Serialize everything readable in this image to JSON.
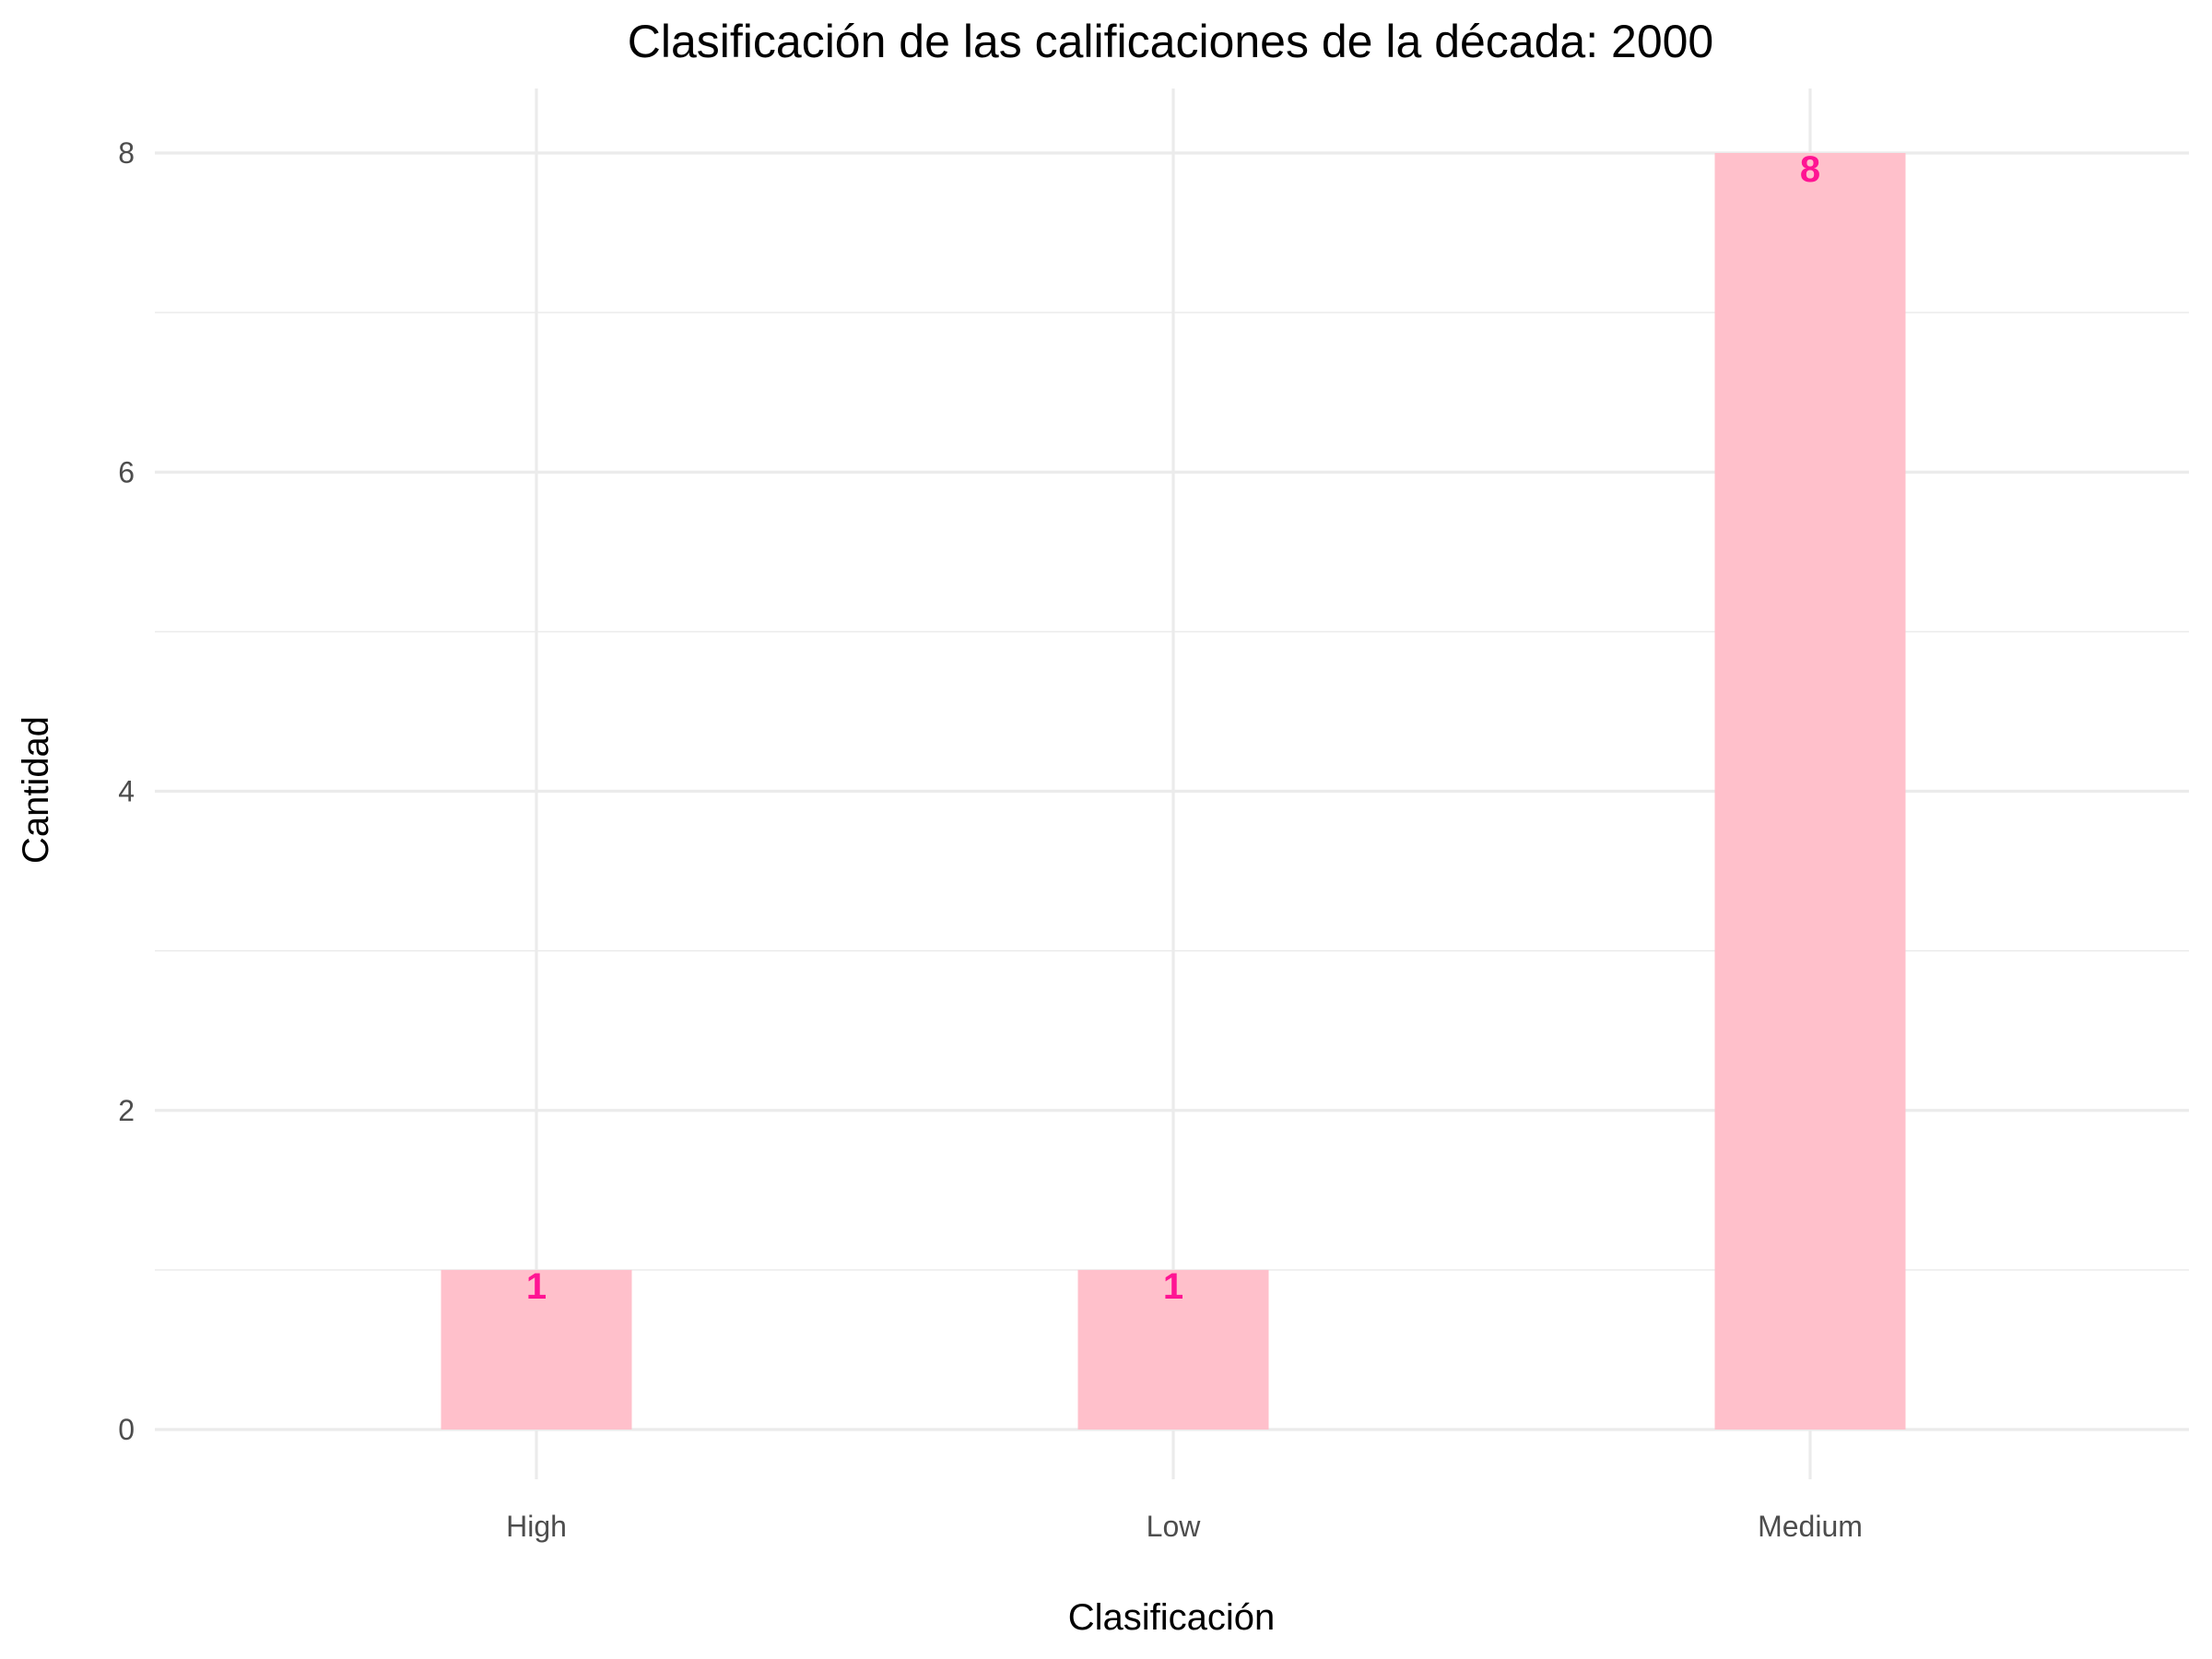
{
  "chart_data": {
    "type": "bar",
    "title": "Clasificación de las calificaciones de la década: 2000",
    "xlabel": "Clasificación",
    "ylabel": "Cantidad",
    "categories": [
      "High",
      "Low",
      "Medium"
    ],
    "values": [
      1,
      1,
      8
    ],
    "data_labels": [
      "1",
      "1",
      "8"
    ],
    "ylim": [
      0,
      8.4
    ],
    "yticks": [
      0,
      2,
      4,
      6,
      8
    ],
    "ytick_labels": [
      "0",
      "2",
      "4",
      "6",
      "8"
    ],
    "grid": true,
    "legend": "none",
    "colors": {
      "bar": "#ffc0cb",
      "label": "#ff1493",
      "grid": "#ebebeb"
    }
  }
}
